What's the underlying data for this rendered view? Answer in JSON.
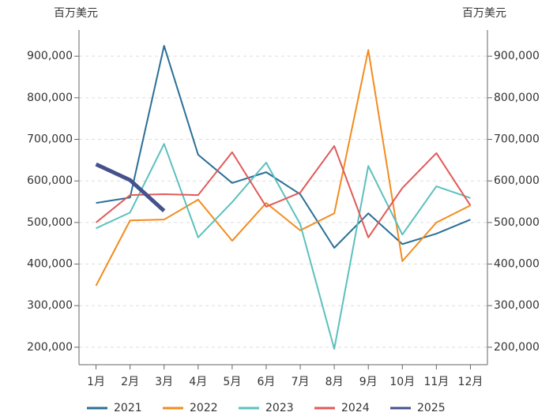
{
  "chart_data": {
    "type": "line",
    "y_label": "百万美元",
    "y2_label": "百万美元",
    "categories": [
      "1月",
      "2月",
      "3月",
      "4月",
      "5月",
      "6月",
      "7月",
      "8月",
      "9月",
      "10月",
      "11月",
      "12月"
    ],
    "series": [
      {
        "name": "2021",
        "color": "#2a6f97",
        "values": [
          547000,
          560000,
          925000,
          663000,
          595000,
          621000,
          568000,
          439000,
          522000,
          448000,
          473000,
          507000
        ]
      },
      {
        "name": "2022",
        "color": "#f28c1e",
        "values": [
          348000,
          505000,
          507000,
          555000,
          456000,
          547000,
          481000,
          522000,
          915000,
          407000,
          500000,
          541000
        ]
      },
      {
        "name": "2023",
        "color": "#5cc0bd",
        "values": [
          486000,
          524000,
          689000,
          464000,
          549000,
          644000,
          496000,
          196000,
          636000,
          471000,
          587000,
          559000
        ]
      },
      {
        "name": "2024",
        "color": "#e05a5a",
        "values": [
          500000,
          566000,
          568000,
          566000,
          669000,
          538000,
          572000,
          684000,
          464000,
          583000,
          667000,
          541000
        ]
      },
      {
        "name": "2025",
        "color": "#45518c",
        "values": [
          640000,
          602000,
          528000,
          null,
          null,
          null,
          null,
          null,
          null,
          null,
          null,
          null
        ]
      }
    ],
    "ylim": [
      158000,
      963000
    ],
    "yticks": [
      {
        "value": 200000,
        "label": "200,000"
      },
      {
        "value": 300000,
        "label": "300,000"
      },
      {
        "value": 400000,
        "label": "400,000"
      },
      {
        "value": 500000,
        "label": "500,000"
      },
      {
        "value": 600000,
        "label": "600,000"
      },
      {
        "value": 700000,
        "label": "700,000"
      },
      {
        "value": 800000,
        "label": "800,000"
      },
      {
        "value": 900000,
        "label": "900,000"
      }
    ],
    "y2lim": [
      158000,
      963000
    ],
    "y2ticks": [
      {
        "value": 200000,
        "label": "200,000"
      },
      {
        "value": 300000,
        "label": "300,000"
      },
      {
        "value": 400000,
        "label": "400,000"
      },
      {
        "value": 500000,
        "label": "500,000"
      },
      {
        "value": 600000,
        "label": "600,000"
      },
      {
        "value": 700000,
        "label": "700,000"
      },
      {
        "value": 800000,
        "label": "800,000"
      },
      {
        "value": 900000,
        "label": "900,000"
      }
    ],
    "grid": true,
    "legend": "bottom"
  }
}
